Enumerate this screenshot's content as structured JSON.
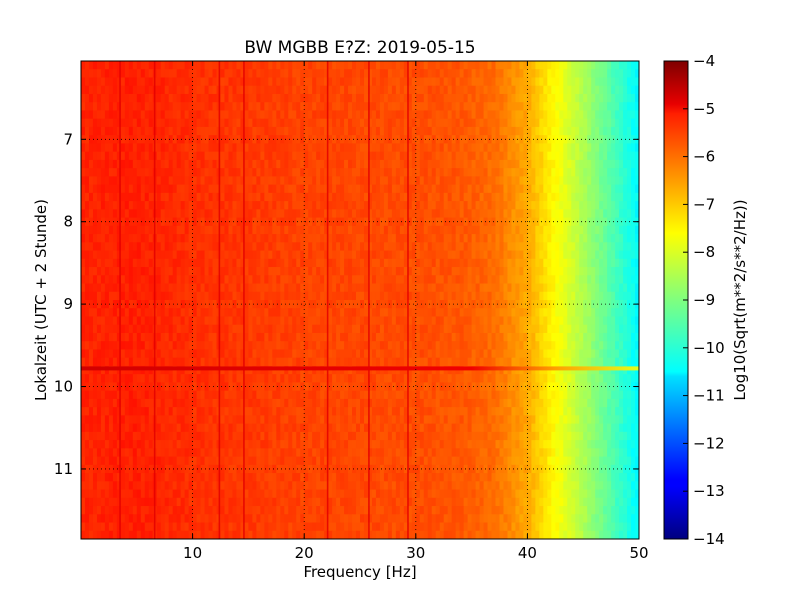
{
  "chart_data": {
    "type": "heatmap",
    "title": "BW MGBB E?Z: 2019-05-15",
    "xlabel": "Frequency [Hz]",
    "ylabel": "Lokalzeit (UTC + 2 Stunde)",
    "xlim": [
      0,
      50
    ],
    "ylim": [
      11.85,
      6.05
    ],
    "y_inverted": true,
    "x_ticks": [
      10,
      20,
      30,
      40,
      50
    ],
    "x_tick_labels": [
      "10",
      "20",
      "30",
      "40",
      "50"
    ],
    "y_ticks": [
      7,
      8,
      9,
      10,
      11
    ],
    "y_tick_labels": [
      "7",
      "8",
      "9",
      "10",
      "11"
    ],
    "grid": true,
    "colorbar": {
      "label": "Log10(Sqrt(m**2/s**2/Hz))",
      "range": [
        -14,
        -4
      ],
      "ticks": [
        -4,
        -5,
        -6,
        -7,
        -8,
        -9,
        -10,
        -11,
        -12,
        -13,
        -14
      ],
      "tick_labels": [
        "−4",
        "−5",
        "−6",
        "−7",
        "−8",
        "−9",
        "−10",
        "−11",
        "−12",
        "−13",
        "−14"
      ],
      "colormap": "jet"
    },
    "frequency_profile": {
      "frequency_hz": [
        0,
        5,
        10,
        20,
        30,
        34,
        37,
        40,
        42,
        44,
        46,
        48,
        50
      ],
      "log10_amplitude": [
        -5.6,
        -5.55,
        -5.7,
        -5.9,
        -6.0,
        -6.1,
        -6.3,
        -6.9,
        -7.6,
        -8.2,
        -8.9,
        -9.6,
        -10.3
      ]
    },
    "vertical_lines_hz": [
      3.5,
      6.6,
      12.4,
      14.6,
      22.1,
      25.8,
      29.3
    ],
    "horizontal_band": {
      "time": 9.78,
      "freq_range": [
        0,
        50
      ],
      "log10_amplitude": -4.8
    }
  }
}
